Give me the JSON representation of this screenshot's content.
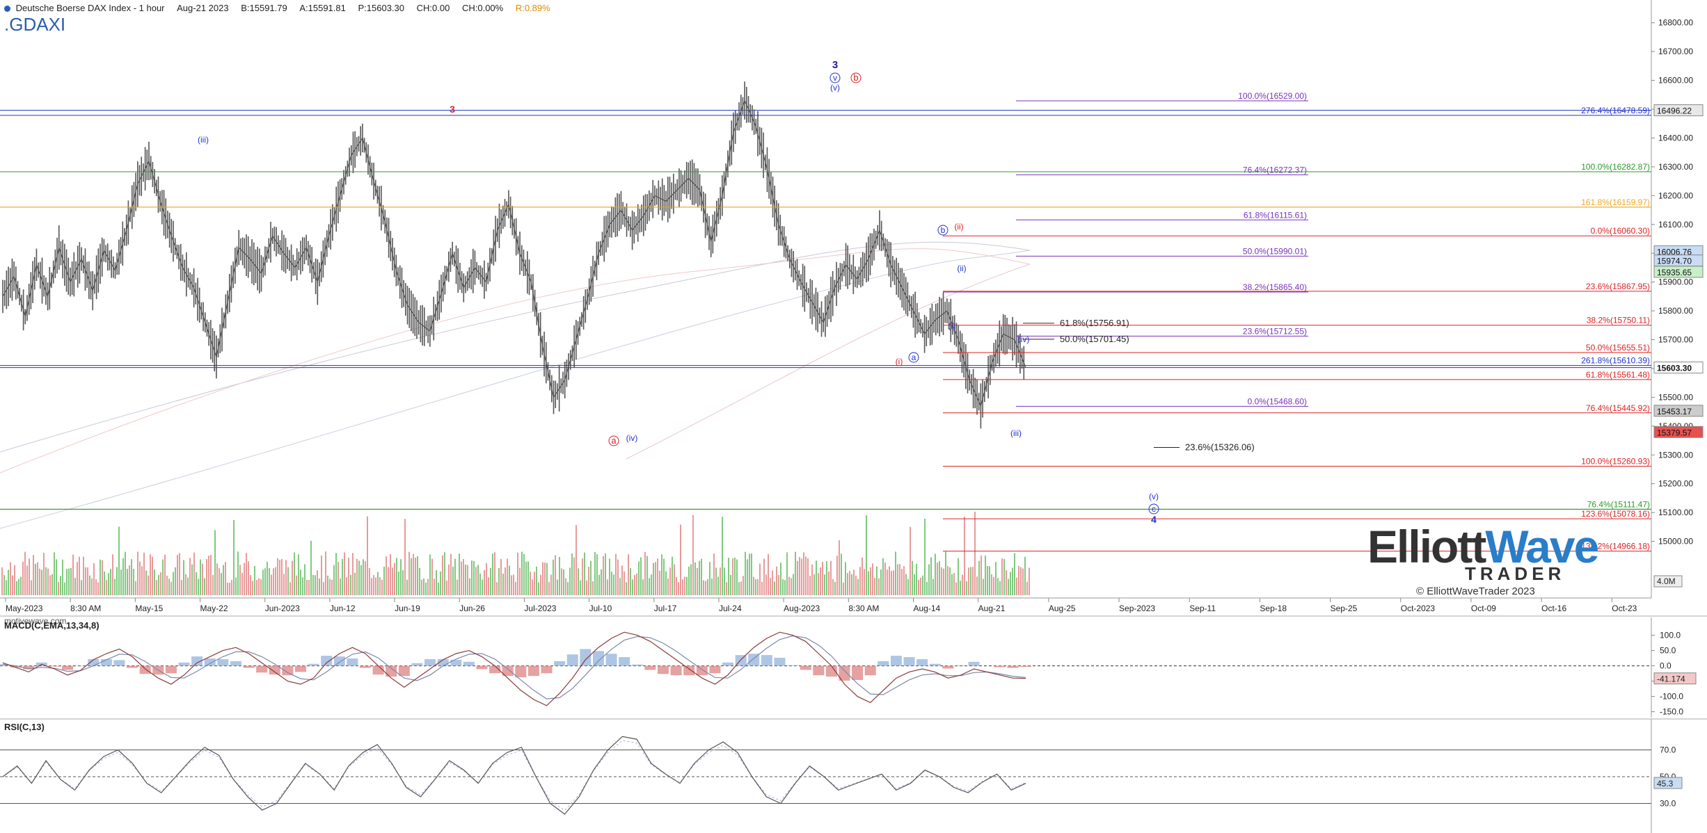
{
  "header": {
    "title": "Deutsche Boerse DAX Index - 1 hour",
    "date": "Aug-21 2023",
    "bid": "B:15591.79",
    "ask": "A:15591.81",
    "price": "P:15603.30",
    "change": "CH:0.00",
    "change_pct": "CH:0.00%",
    "range": "R:0.89%"
  },
  "ticker": ".GDAXI",
  "watermark": "motivewave.com",
  "logo": {
    "word1": "Elliott",
    "word2": "Wave",
    "word3": "TRADER",
    "copyright": "© ElliottWaveTrader 2023"
  },
  "chart_data": [
    {
      "type": "line",
      "panel": "price",
      "ylim": [
        14900,
        16850
      ],
      "y_ticks": [
        "16800.00",
        "16700.00",
        "16600.00",
        "16500.00",
        "16400.00",
        "16300.00",
        "16200.00",
        "16100.00",
        "16000.00",
        "15900.00",
        "15800.00",
        "15700.00",
        "15600.00",
        "15500.00",
        "15400.00",
        "15300.00",
        "15200.00",
        "15100.00",
        "15000.00"
      ],
      "x_ticks": [
        "May-2023",
        "8:30 AM",
        "May-15",
        "May-22",
        "Jun-2023",
        "Jun-12",
        "Jun-19",
        "Jun-26",
        "Jul-2023",
        "Jul-10",
        "Jul-17",
        "Jul-24",
        "Aug-2023",
        "8:30 AM",
        "Aug-14",
        "Aug-21",
        "Aug-25",
        "Sep-2023",
        "Sep-11",
        "Sep-18",
        "Sep-25",
        "Oct-2023",
        "Oct-09",
        "Oct-16",
        "Oct-23"
      ],
      "series": [
        {
          "values": [
            15850,
            15920,
            15780,
            15960,
            15850,
            16020,
            15900,
            15980,
            15870,
            16010,
            15940,
            16080,
            16240,
            16320,
            16180,
            16060,
            15950,
            15880,
            15760,
            15640,
            15830,
            16020,
            15980,
            15930,
            16060,
            16000,
            15950,
            16020,
            15900,
            16060,
            16200,
            16340,
            16400,
            16250,
            16110,
            15940,
            15820,
            15760,
            15730,
            15860,
            16000,
            15880,
            15950,
            15900,
            16080,
            16170,
            16000,
            15900,
            15680,
            15500,
            15560,
            15700,
            15840,
            16000,
            16100,
            16150,
            16080,
            16130,
            16200,
            16180,
            16220,
            16260,
            16220,
            16040,
            16200,
            16420,
            16530,
            16440,
            16290,
            16100,
            15980,
            15900,
            15830,
            15760,
            15880,
            15960,
            15910,
            15980,
            16080,
            15960,
            15880,
            15800,
            15720,
            15770,
            15800,
            15700,
            15560,
            15470,
            15620,
            15720,
            15700,
            15603
          ]
        }
      ],
      "price_tags": [
        {
          "value": 16496.22,
          "label": "16496.22"
        },
        {
          "value": 16006.76,
          "label": "16006.76"
        },
        {
          "value": 15974.7,
          "label": "15974.70"
        },
        {
          "value": 15935.65,
          "label": "15935.65"
        },
        {
          "value": 15603.3,
          "label": "15603.30"
        },
        {
          "value": 15453.17,
          "label": "15453.17"
        },
        {
          "value": 15379.57,
          "label": "15379.57"
        }
      ],
      "horizontal_lines": [
        {
          "value": 16496.22,
          "color": "#2233cc"
        },
        {
          "value": 16282.87,
          "color": "#2a9a2a"
        },
        {
          "value": 16159.97,
          "color": "#f0a820"
        },
        {
          "value": 15603.3,
          "color": "#2233cc"
        },
        {
          "value": 15111.47,
          "color": "#2a9a2a"
        }
      ],
      "fib_levels": [
        {
          "label": "100.0%(16529.00)",
          "value": 16529.0,
          "color": "#7733bb"
        },
        {
          "label": "276.4%(16478.59)",
          "value": 16478.59,
          "color": "#2233cc"
        },
        {
          "label": "76.4%(16272.37)",
          "value": 16272.37,
          "color": "#7733bb"
        },
        {
          "label": "100.0%(16282.87)",
          "value": 16282.87,
          "color": "#2a9a2a"
        },
        {
          "label": "161.8%(16159.97)",
          "value": 16159.97,
          "color": "#f0a820"
        },
        {
          "label": "61.8%(16115.61)",
          "value": 16115.61,
          "color": "#7733bb"
        },
        {
          "label": "0.0%(16060.30)",
          "value": 16060.3,
          "color": "#dd2222"
        },
        {
          "label": "50.0%(15990.01)",
          "value": 15990.01,
          "color": "#7733bb"
        },
        {
          "label": "38.2%(15865.40)",
          "value": 15865.4,
          "color": "#7733bb"
        },
        {
          "label": "23.6%(15867.95)",
          "value": 15867.95,
          "color": "#dd2222"
        },
        {
          "label": "61.8%(15756.91)",
          "value": 15756.91,
          "color": "#222222"
        },
        {
          "label": "38.2%(15750.11)",
          "value": 15750.11,
          "color": "#dd2222"
        },
        {
          "label": "23.6%(15712.55)",
          "value": 15712.55,
          "color": "#7733bb"
        },
        {
          "label": "50.0%(15701.45)",
          "value": 15701.45,
          "color": "#222222"
        },
        {
          "label": "50.0%(15655.51)",
          "value": 15655.51,
          "color": "#dd2222"
        },
        {
          "label": "261.8%(15610.39)",
          "value": 15610.39,
          "color": "#2233cc"
        },
        {
          "label": "61.8%(15561.48)",
          "value": 15561.48,
          "color": "#dd2222"
        },
        {
          "label": "0.0%(15468.60)",
          "value": 15468.6,
          "color": "#7733bb"
        },
        {
          "label": "76.4%(15445.92)",
          "value": 15445.92,
          "color": "#dd2222"
        },
        {
          "label": "23.6%(15326.06)",
          "value": 15326.06,
          "color": "#222222"
        },
        {
          "label": "100.0%(15260.93)",
          "value": 15260.93,
          "color": "#dd2222"
        },
        {
          "label": "76.4%(15111.47)",
          "value": 15111.47,
          "color": "#2a9a2a"
        },
        {
          "label": "123.6%(15078.16)",
          "value": 15078.16,
          "color": "#dd2222"
        },
        {
          "label": "138.2%(14966.18)",
          "value": 14966.18,
          "color": "#dd2222"
        }
      ],
      "wave_labels": [
        {
          "text": "(iii)",
          "color": "#2233cc"
        },
        {
          "text": "3",
          "color": "#dd2222"
        },
        {
          "text": "3",
          "color": "#1a1a99"
        },
        {
          "text": "v",
          "color": "#2233cc"
        },
        {
          "text": "(v)",
          "color": "#2233cc"
        },
        {
          "text": "b",
          "color": "#dd2222"
        },
        {
          "text": "a",
          "color": "#dd2222"
        },
        {
          "text": "(iv)",
          "color": "#2233cc"
        },
        {
          "text": "b",
          "color": "#2233cc"
        },
        {
          "text": "(ii)",
          "color": "#dd2222"
        },
        {
          "text": "(ii)",
          "color": "#2233cc"
        },
        {
          "text": "(i)",
          "color": "#2233cc"
        },
        {
          "text": "a",
          "color": "#2233cc"
        },
        {
          "text": "(i)",
          "color": "#dd2222"
        },
        {
          "text": "(iv)",
          "color": "#2233cc"
        },
        {
          "text": "(iii)",
          "color": "#2233cc"
        },
        {
          "text": "(v)",
          "color": "#2233cc"
        },
        {
          "text": "c",
          "color": "#2233cc"
        },
        {
          "text": "4",
          "color": "#2233cc"
        }
      ],
      "volume_tag": "4.0M",
      "colors": {
        "price": "#555555",
        "volume_up": "#7fc97f",
        "volume_down": "#e89a9a"
      }
    },
    {
      "type": "area",
      "panel": "macd",
      "title": "MACD(C,EMA,13,34,8)",
      "ylim": [
        -160,
        140
      ],
      "y_ticks": [
        "100.0",
        "50.0",
        "0.0",
        "-50.0",
        "-100.0",
        "-150.0"
      ],
      "value_tag": "-41.174",
      "series": [
        {
          "name": "MACD",
          "values": [
            10,
            -5,
            -20,
            5,
            -10,
            -30,
            -15,
            20,
            40,
            55,
            30,
            -10,
            -40,
            -60,
            -30,
            10,
            30,
            50,
            60,
            40,
            10,
            -20,
            -50,
            -60,
            -40,
            10,
            40,
            60,
            40,
            0,
            -40,
            -70,
            -40,
            -10,
            20,
            40,
            50,
            30,
            0,
            -40,
            -80,
            -110,
            -130,
            -90,
            -40,
            20,
            60,
            90,
            110,
            100,
            80,
            50,
            20,
            -10,
            -40,
            -60,
            -30,
            20,
            60,
            90,
            110,
            100,
            80,
            40,
            0,
            -60,
            -100,
            -120,
            -80,
            -40,
            -20,
            -10,
            -20,
            -40,
            -30,
            -10,
            -20,
            -30,
            -40,
            -41
          ]
        },
        {
          "name": "Signal",
          "values": [
            5,
            0,
            -10,
            -5,
            -8,
            -18,
            -16,
            0,
            20,
            38,
            36,
            14,
            -14,
            -38,
            -40,
            -18,
            8,
            30,
            46,
            46,
            30,
            6,
            -22,
            -42,
            -46,
            -20,
            12,
            38,
            46,
            26,
            -8,
            -40,
            -48,
            -30,
            0,
            22,
            38,
            40,
            22,
            -10,
            -46,
            -80,
            -108,
            -104,
            -74,
            -30,
            16,
            54,
            84,
            96,
            92,
            74,
            48,
            18,
            -12,
            -38,
            -40,
            -12,
            24,
            58,
            86,
            98,
            92,
            68,
            32,
            -16,
            -58,
            -92,
            -94,
            -70,
            -46,
            -30,
            -26,
            -32,
            -32,
            -22,
            -20,
            -26,
            -34,
            -38
          ]
        }
      ],
      "colors": {
        "macd": "#8a3a3a",
        "signal": "#7a8aaa",
        "hist_up": "#9ab8de",
        "hist_down": "#e08a8a"
      }
    },
    {
      "type": "line",
      "panel": "rsi",
      "title": "RSI(C,13)",
      "ylim": [
        10,
        90
      ],
      "y_ticks": [
        "70.0",
        "50.0",
        "30.0"
      ],
      "value_tag": "45.3",
      "series": [
        {
          "name": "RSI",
          "values": [
            50,
            58,
            45,
            62,
            48,
            40,
            55,
            65,
            70,
            60,
            45,
            38,
            50,
            62,
            72,
            66,
            48,
            35,
            25,
            30,
            45,
            60,
            52,
            40,
            58,
            68,
            74,
            60,
            42,
            35,
            48,
            62,
            55,
            45,
            60,
            68,
            72,
            50,
            30,
            22,
            35,
            55,
            70,
            80,
            78,
            60,
            52,
            45,
            60,
            70,
            76,
            68,
            50,
            35,
            30,
            45,
            58,
            50,
            40,
            44,
            48,
            52,
            40,
            45,
            55,
            50,
            42,
            38,
            46,
            52,
            40,
            45
          ]
        }
      ],
      "colors": {
        "rsi": "#555555"
      }
    }
  ]
}
